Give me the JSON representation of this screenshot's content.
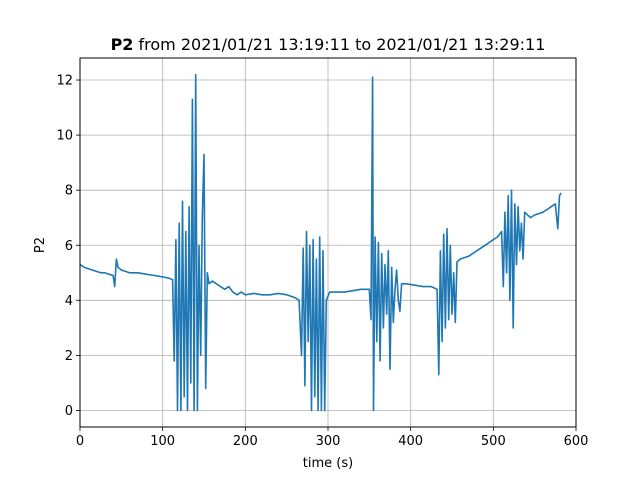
{
  "chart_data": {
    "type": "line",
    "title_bold": "P2",
    "title_rest": " from 2021/01/21 13:19:11 to 2021/01/21 13:29:11",
    "xlabel": "time (s)",
    "ylabel": "P2",
    "xlim": [
      0,
      600
    ],
    "ylim": [
      -0.6,
      12.8
    ],
    "xticks": [
      0,
      100,
      200,
      300,
      400,
      500,
      600
    ],
    "yticks": [
      0,
      2,
      4,
      6,
      8,
      10,
      12
    ],
    "grid": true,
    "series": [
      {
        "color": "#1f77b4",
        "points": [
          [
            0,
            5.3
          ],
          [
            5,
            5.2
          ],
          [
            10,
            5.15
          ],
          [
            15,
            5.1
          ],
          [
            20,
            5.05
          ],
          [
            25,
            5.0
          ],
          [
            30,
            5.0
          ],
          [
            35,
            4.95
          ],
          [
            40,
            4.9
          ],
          [
            42,
            4.5
          ],
          [
            44,
            5.5
          ],
          [
            46,
            5.2
          ],
          [
            50,
            5.1
          ],
          [
            55,
            5.05
          ],
          [
            60,
            5.0
          ],
          [
            70,
            5.0
          ],
          [
            80,
            4.95
          ],
          [
            90,
            4.9
          ],
          [
            100,
            4.85
          ],
          [
            108,
            4.8
          ],
          [
            112,
            4.75
          ],
          [
            114,
            1.8
          ],
          [
            116,
            6.2
          ],
          [
            118,
            0.0
          ],
          [
            120,
            6.8
          ],
          [
            122,
            0.0
          ],
          [
            124,
            7.6
          ],
          [
            126,
            0.5
          ],
          [
            128,
            6.5
          ],
          [
            130,
            0.0
          ],
          [
            132,
            7.4
          ],
          [
            134,
            1.0
          ],
          [
            136,
            11.3
          ],
          [
            138,
            0.0
          ],
          [
            140,
            12.2
          ],
          [
            142,
            0.0
          ],
          [
            144,
            6.0
          ],
          [
            146,
            2.0
          ],
          [
            148,
            7.0
          ],
          [
            150,
            9.3
          ],
          [
            152,
            0.8
          ],
          [
            154,
            5.0
          ],
          [
            156,
            4.6
          ],
          [
            160,
            4.7
          ],
          [
            165,
            4.6
          ],
          [
            170,
            4.5
          ],
          [
            175,
            4.4
          ],
          [
            180,
            4.5
          ],
          [
            185,
            4.3
          ],
          [
            190,
            4.2
          ],
          [
            195,
            4.3
          ],
          [
            200,
            4.2
          ],
          [
            210,
            4.25
          ],
          [
            220,
            4.2
          ],
          [
            230,
            4.2
          ],
          [
            240,
            4.25
          ],
          [
            250,
            4.2
          ],
          [
            260,
            4.1
          ],
          [
            265,
            4.0
          ],
          [
            268,
            2.0
          ],
          [
            270,
            5.9
          ],
          [
            272,
            0.9
          ],
          [
            274,
            6.5
          ],
          [
            276,
            2.5
          ],
          [
            278,
            6.0
          ],
          [
            280,
            0.0
          ],
          [
            282,
            6.2
          ],
          [
            284,
            0.5
          ],
          [
            286,
            5.5
          ],
          [
            288,
            0.0
          ],
          [
            290,
            6.3
          ],
          [
            292,
            0.0
          ],
          [
            294,
            5.8
          ],
          [
            296,
            0.0
          ],
          [
            298,
            4.0
          ],
          [
            302,
            4.3
          ],
          [
            310,
            4.3
          ],
          [
            320,
            4.3
          ],
          [
            330,
            4.35
          ],
          [
            340,
            4.4
          ],
          [
            350,
            4.4
          ],
          [
            352,
            3.3
          ],
          [
            354,
            12.1
          ],
          [
            355,
            0.0
          ],
          [
            357,
            6.3
          ],
          [
            359,
            2.5
          ],
          [
            361,
            6.1
          ],
          [
            363,
            1.8
          ],
          [
            365,
            5.7
          ],
          [
            367,
            3.0
          ],
          [
            369,
            5.3
          ],
          [
            371,
            3.5
          ],
          [
            373,
            5.8
          ],
          [
            375,
            1.5
          ],
          [
            377,
            5.2
          ],
          [
            379,
            3.2
          ],
          [
            381,
            4.4
          ],
          [
            383,
            5.1
          ],
          [
            385,
            4.0
          ],
          [
            387,
            3.6
          ],
          [
            389,
            4.6
          ],
          [
            395,
            4.6
          ],
          [
            405,
            4.55
          ],
          [
            415,
            4.5
          ],
          [
            425,
            4.5
          ],
          [
            432,
            4.4
          ],
          [
            434,
            1.3
          ],
          [
            436,
            5.8
          ],
          [
            438,
            2.5
          ],
          [
            440,
            6.4
          ],
          [
            442,
            3.0
          ],
          [
            444,
            6.6
          ],
          [
            446,
            3.3
          ],
          [
            448,
            6.0
          ],
          [
            450,
            3.5
          ],
          [
            452,
            5.0
          ],
          [
            454,
            3.2
          ],
          [
            456,
            5.4
          ],
          [
            460,
            5.5
          ],
          [
            470,
            5.6
          ],
          [
            480,
            5.8
          ],
          [
            490,
            6.0
          ],
          [
            500,
            6.2
          ],
          [
            505,
            6.3
          ],
          [
            510,
            6.5
          ],
          [
            512,
            4.5
          ],
          [
            514,
            7.2
          ],
          [
            516,
            5.0
          ],
          [
            518,
            7.8
          ],
          [
            520,
            4.0
          ],
          [
            522,
            8.0
          ],
          [
            524,
            3.0
          ],
          [
            526,
            7.5
          ],
          [
            528,
            5.3
          ],
          [
            530,
            7.4
          ],
          [
            532,
            5.8
          ],
          [
            534,
            6.8
          ],
          [
            536,
            5.5
          ],
          [
            538,
            7.2
          ],
          [
            545,
            7.0
          ],
          [
            550,
            7.1
          ],
          [
            560,
            7.2
          ],
          [
            565,
            7.3
          ],
          [
            570,
            7.4
          ],
          [
            575,
            7.5
          ],
          [
            578,
            6.6
          ],
          [
            580,
            7.8
          ],
          [
            582,
            7.9
          ]
        ]
      }
    ]
  }
}
